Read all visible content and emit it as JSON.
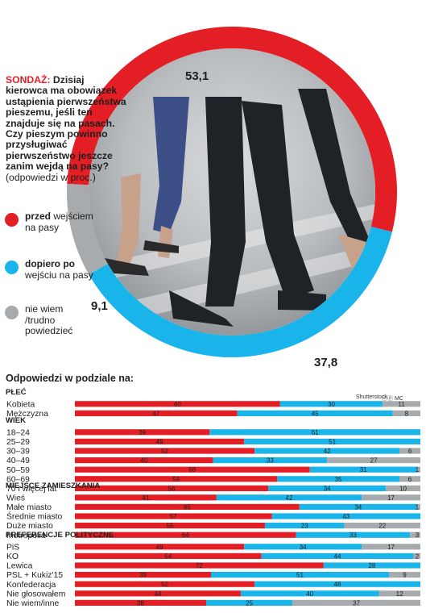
{
  "intro": {
    "label": "SONDAŻ:",
    "question": "Dzisiaj kierowca ma obowiązek ustąpienia pierwszeństwa pieszemu, jeśli ten znajduje się na pasach. Czy pieszym powinno przysługiwać pierwszeństwo jeszcze zanim wejdą na pasy?",
    "note": "(odpowiedzi w proc.)"
  },
  "legend": [
    {
      "bold": "przed",
      "rest": " wejściem na pasy",
      "color": "#e31e24"
    },
    {
      "bold": "dopiero po",
      "rest": " wejściu na pasy",
      "color": "#19b5ea"
    },
    {
      "bold": "",
      "rest": "nie wiem /trudno powiedzieć",
      "color": "#a7abae"
    }
  ],
  "breakdown_title": "Odpowiedzi w podziale na:",
  "credit": "Shutterstock",
  "mc": "MC",
  "colors": {
    "red": "#e31e24",
    "blue": "#19b5ea",
    "gray": "#a7abae",
    "photo_bg": "#9a9ea2"
  },
  "chart_data": [
    {
      "type": "pie",
      "categories": [
        "przed wejściem na pasy",
        "dopiero po wejściu na pasy",
        "nie wiem /trudno powiedzieć"
      ],
      "values": [
        53.1,
        37.8,
        9.1
      ],
      "labels": [
        "53,1",
        "37,8",
        "9,1"
      ]
    },
    {
      "type": "bar",
      "stacked": true,
      "orientation": "horizontal",
      "xlim": [
        0,
        100
      ],
      "series_names": [
        "przed wejściem na pasy",
        "dopiero po wejściu na pasy",
        "nie wiem /trudno powiedzieć"
      ],
      "groups": [
        {
          "name": "PŁEĆ",
          "rows": [
            {
              "label": "Kobieta",
              "values": [
                60,
                30,
                11
              ]
            },
            {
              "label": "Mężczyzna",
              "values": [
                47,
                45,
                8
              ]
            }
          ]
        },
        {
          "name": "WIEK",
          "rows": [
            {
              "label": "18–24",
              "values": [
                39,
                61,
                0
              ]
            },
            {
              "label": "25–29",
              "values": [
                49,
                51,
                0
              ]
            },
            {
              "label": "30–39",
              "values": [
                52,
                42,
                6
              ]
            },
            {
              "label": "40–49",
              "values": [
                40,
                33,
                27
              ]
            },
            {
              "label": "50–59",
              "values": [
                68,
                31,
                1
              ]
            },
            {
              "label": "60–69",
              "values": [
                58,
                35,
                6
              ]
            },
            {
              "label": "70 i więcej lat",
              "values": [
                56,
                34,
                10
              ]
            }
          ]
        },
        {
          "name": "MIEJSCE ZAMIESZKANIA",
          "rows": [
            {
              "label": "Wieś",
              "values": [
                41,
                42,
                17
              ]
            },
            {
              "label": "Małe miasto",
              "values": [
                65,
                34,
                1
              ]
            },
            {
              "label": "Średnie miasto",
              "values": [
                57,
                43,
                0
              ]
            },
            {
              "label": "Duże miasto",
              "values": [
                55,
                23,
                22
              ]
            },
            {
              "label": "Metropolia",
              "values": [
                64,
                33,
                3
              ]
            }
          ]
        },
        {
          "name": "PREFERENCJE POLITYCZNE",
          "rows": [
            {
              "label": "PiS",
              "values": [
                49,
                34,
                17
              ]
            },
            {
              "label": "KO",
              "values": [
                54,
                44,
                2
              ]
            },
            {
              "label": "Lewica",
              "values": [
                72,
                28,
                0
              ]
            },
            {
              "label": "PSL + Kukiz'15",
              "values": [
                39,
                51,
                9
              ]
            },
            {
              "label": "Konfederacja",
              "values": [
                52,
                48,
                0
              ]
            },
            {
              "label": "Nie głosowałem",
              "values": [
                48,
                40,
                12
              ]
            },
            {
              "label": "Nie wiem/inne",
              "values": [
                38,
                25,
                37
              ]
            }
          ]
        }
      ]
    }
  ]
}
